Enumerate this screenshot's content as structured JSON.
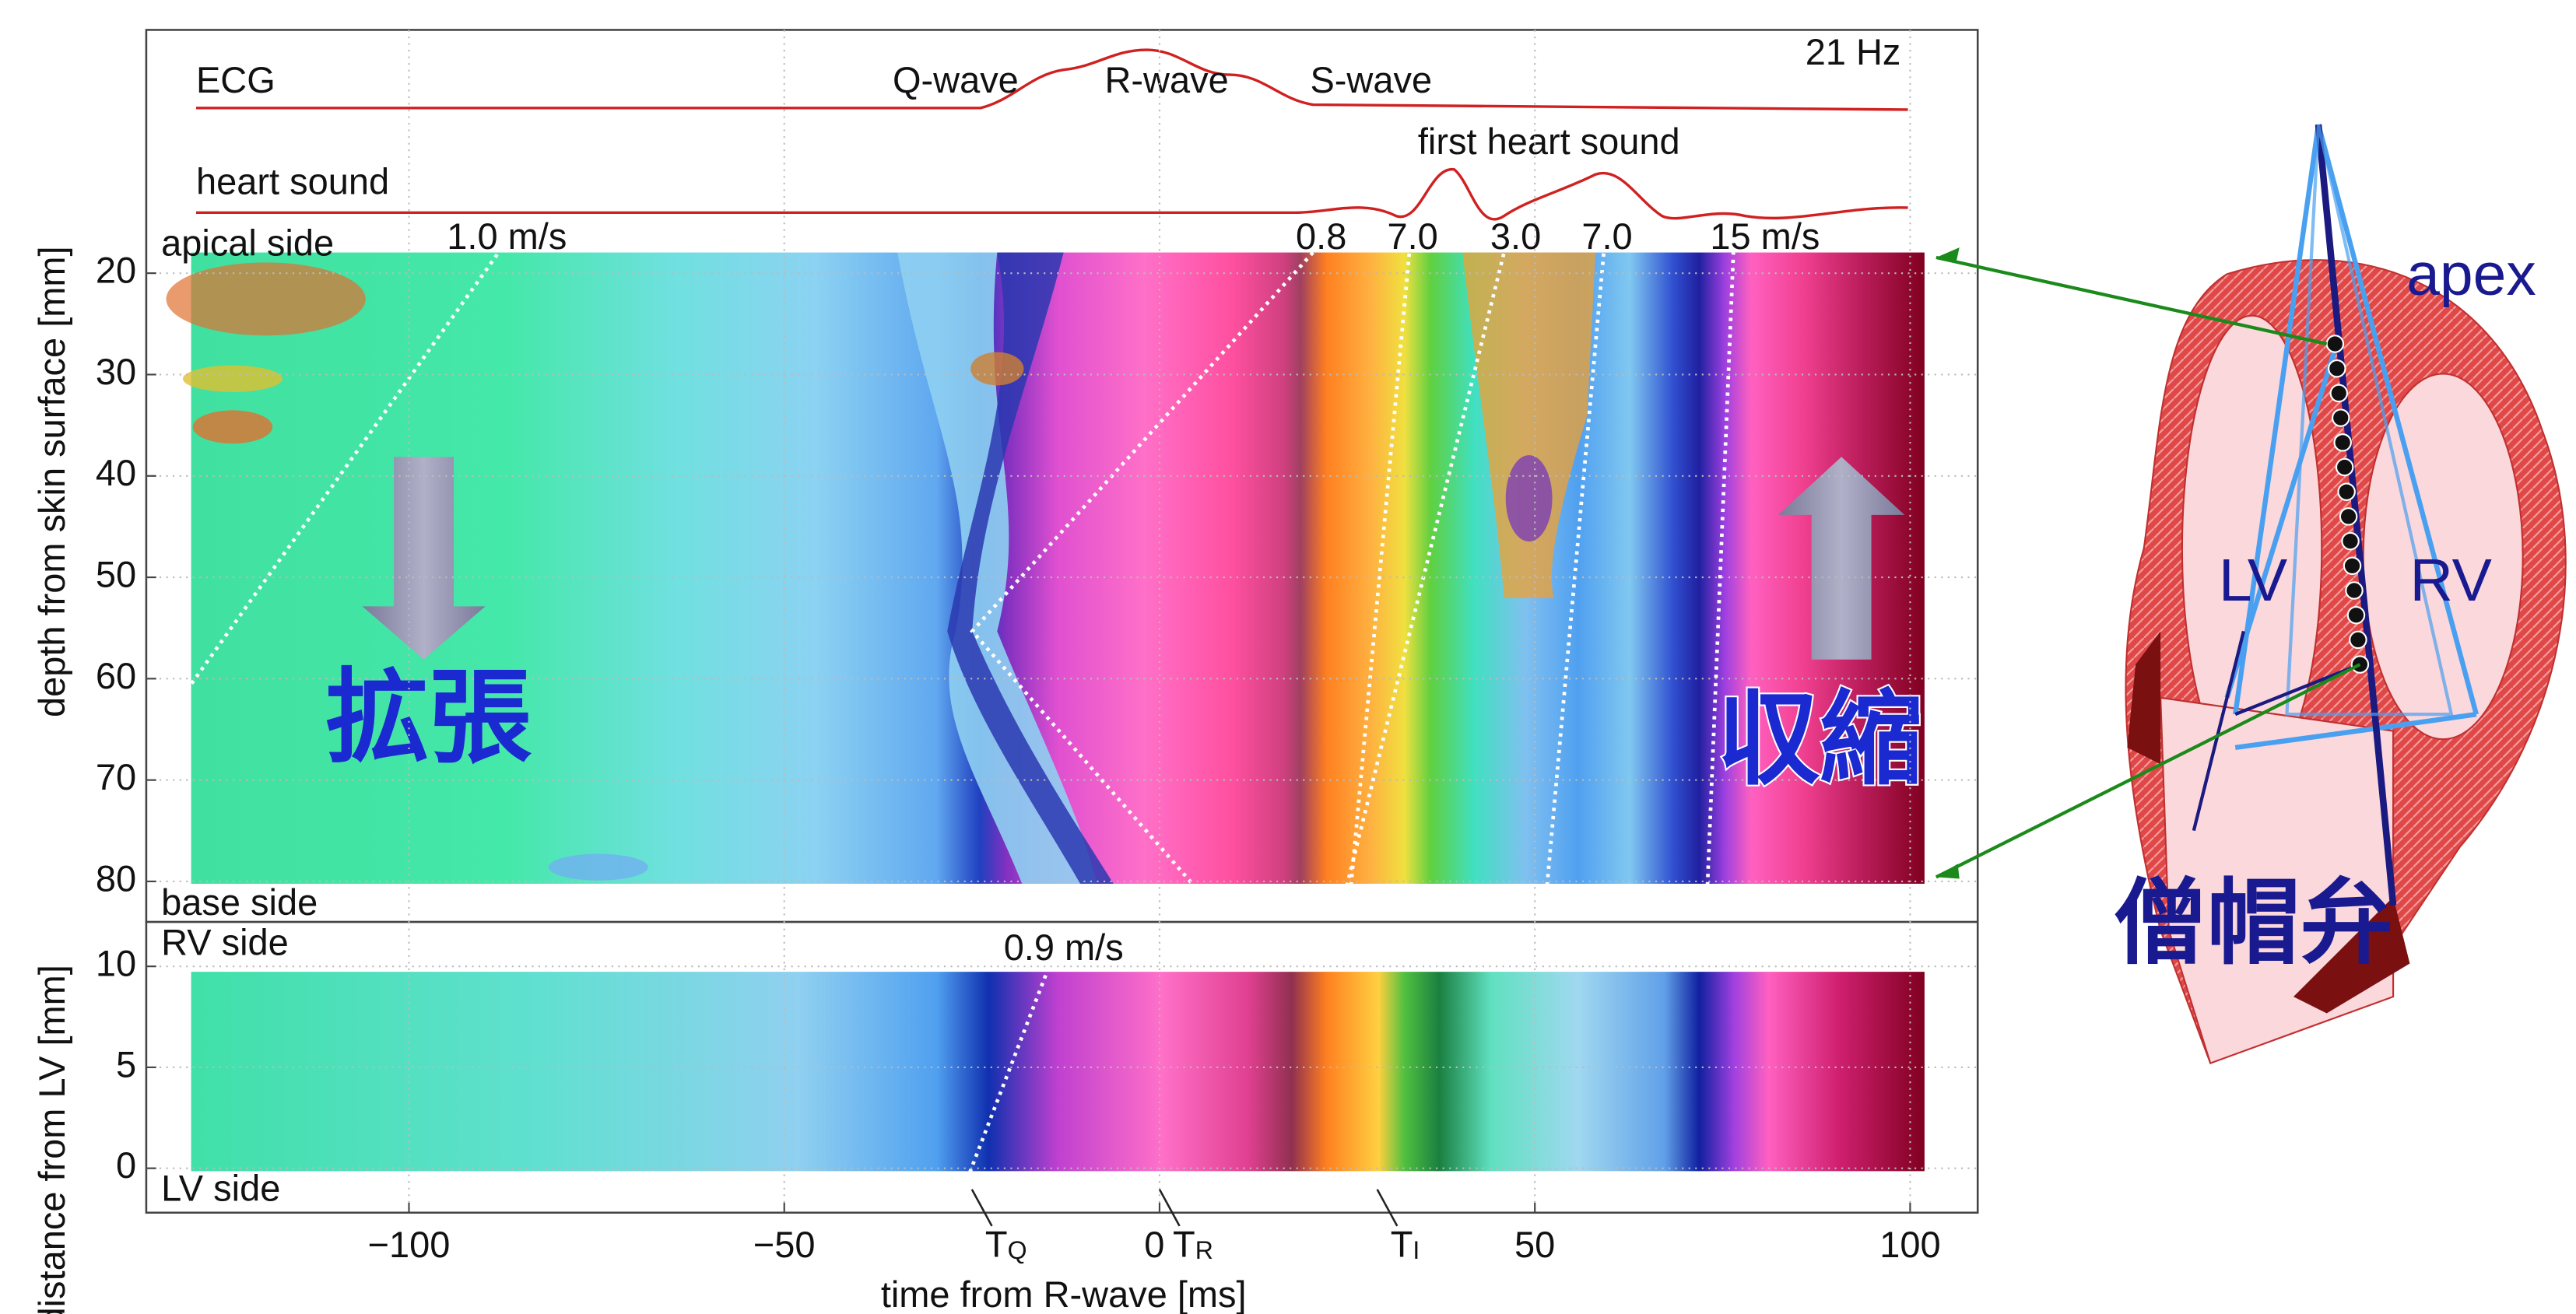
{
  "chart_data": [
    {
      "type": "heatmap",
      "y_label": "depth from skin surface [mm]",
      "ylim": [
        84,
        -4
      ],
      "yticks": [
        20,
        30,
        40,
        50,
        60,
        70,
        80
      ],
      "grid": true,
      "annotations": [
        "ECG",
        "Q-wave",
        "R-wave",
        "S-wave",
        "21 Hz",
        "heart sound",
        "first heart sound",
        "apical side",
        "base side",
        "1.0 m/s",
        "0.8",
        "7.0",
        "3.0",
        "7.0",
        "15 m/s",
        "拡張",
        "収縮"
      ]
    },
    {
      "type": "heatmap",
      "x_label": "time from R-wave [ms]",
      "y_label": "distance from LV [mm]",
      "xlim": [
        -135,
        109
      ],
      "xticks": [
        {
          "value": -100,
          "label": "−100"
        },
        {
          "value": -50,
          "label": "−50"
        },
        0,
        50,
        100
      ],
      "ylim": [
        -2.2,
        12.2
      ],
      "yticks": [
        0,
        5,
        10
      ],
      "grid": true,
      "annotations": [
        "RV side",
        "LV side",
        "0.9 m/s"
      ],
      "markers": [
        {
          "label": "T",
          "subscript": "Q",
          "x": -25
        },
        {
          "label": "T",
          "subscript": "R",
          "x": 0
        },
        {
          "label": "T",
          "subscript": "I",
          "x": 29
        }
      ]
    }
  ],
  "diagram": {
    "labels": [
      "apex",
      "LV",
      "RV",
      "僧帽弁"
    ]
  }
}
